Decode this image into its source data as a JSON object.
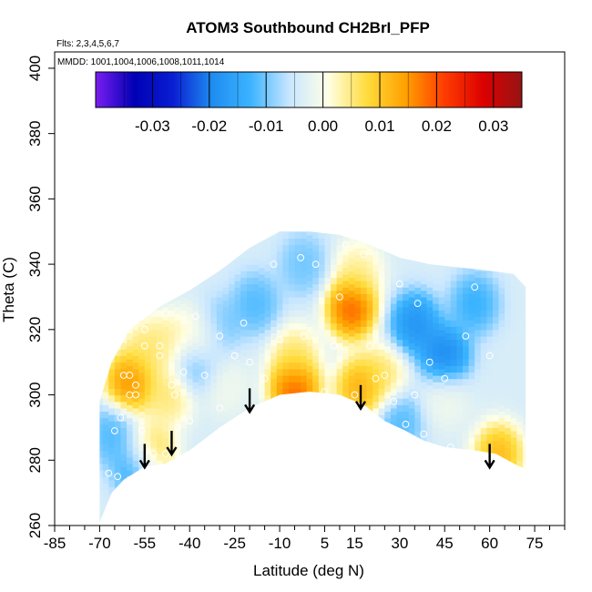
{
  "chart_data": {
    "type": "heatmap",
    "title": "ATOM3 Southbound CH2BrI_PFP",
    "subtitle_lines": [
      "Flts: 2,3,4,5,6,7",
      "MMDD: 1001,1004,1006,1008,1011,1014"
    ],
    "xlabel": "Latitude (deg N)",
    "ylabel": "Theta (C)",
    "xlim": [
      -85,
      85
    ],
    "ylim": [
      260,
      405
    ],
    "xticks": [
      -85,
      -70,
      -55,
      -40,
      -25,
      -10,
      5,
      15,
      30,
      45,
      60,
      75
    ],
    "xtick_labels": [
      "-85",
      "-70",
      "-55",
      "-40",
      "-25",
      "-10",
      "5",
      "15",
      "30",
      "45",
      "60",
      "75"
    ],
    "yticks": [
      260,
      280,
      300,
      320,
      340,
      360,
      380,
      400
    ],
    "ytick_labels": [
      "260",
      "280",
      "300",
      "320",
      "340",
      "360",
      "380",
      "400"
    ],
    "colorbar": {
      "min": -0.04,
      "max": 0.035,
      "ticks": [
        -0.03,
        -0.02,
        -0.01,
        0.0,
        0.01,
        0.02,
        0.03
      ],
      "tick_labels": [
        "-0.03",
        "-0.02",
        "-0.01",
        "0.00",
        "0.01",
        "0.02",
        "0.03"
      ],
      "colors": [
        "#7a1ef0",
        "#0000b4",
        "#0a1ed2",
        "#1e8cf0",
        "#3cb4ff",
        "#c8e6ff",
        "#ffffe6",
        "#ffdc3c",
        "#ffa000",
        "#ff3c00",
        "#dc0000",
        "#961414"
      ]
    },
    "top_boundary": [
      [
        -70,
        298
      ],
      [
        -66,
        310
      ],
      [
        -60,
        320
      ],
      [
        -50,
        327
      ],
      [
        -40,
        332
      ],
      [
        -30,
        338
      ],
      [
        -20,
        345
      ],
      [
        -10,
        350
      ],
      [
        0,
        350
      ],
      [
        10,
        349
      ],
      [
        20,
        346
      ],
      [
        30,
        342
      ],
      [
        40,
        340
      ],
      [
        50,
        339
      ],
      [
        60,
        338
      ],
      [
        68,
        337
      ],
      [
        72,
        333
      ]
    ],
    "bottom_boundary": [
      [
        -70,
        261
      ],
      [
        -66,
        270
      ],
      [
        -62,
        274
      ],
      [
        -55,
        278
      ],
      [
        -48,
        279
      ],
      [
        -40,
        283
      ],
      [
        -30,
        290
      ],
      [
        -20,
        296
      ],
      [
        -10,
        300
      ],
      [
        0,
        301
      ],
      [
        10,
        300
      ],
      [
        18,
        297
      ],
      [
        25,
        292
      ],
      [
        32,
        289
      ],
      [
        38,
        286
      ],
      [
        45,
        284
      ],
      [
        55,
        283
      ],
      [
        62,
        282
      ],
      [
        72,
        277
      ]
    ],
    "anomalies": [
      {
        "lat": -60,
        "theta": 304,
        "value": 0.025
      },
      {
        "lat": -54,
        "theta": 314,
        "value": 0.012
      },
      {
        "lat": -47,
        "theta": 316,
        "value": 0.01
      },
      {
        "lat": -36,
        "theta": 318,
        "value": 0.014
      },
      {
        "lat": -47,
        "theta": 300,
        "value": 0.012
      },
      {
        "lat": -53,
        "theta": 282,
        "value": 0.018
      },
      {
        "lat": -5,
        "theta": 302,
        "value": 0.03
      },
      {
        "lat": -5,
        "theta": 312,
        "value": 0.012
      },
      {
        "lat": 14,
        "theta": 327,
        "value": 0.03
      },
      {
        "lat": 17,
        "theta": 302,
        "value": 0.022
      },
      {
        "lat": 24,
        "theta": 306,
        "value": 0.012
      },
      {
        "lat": 16,
        "theta": 338,
        "value": 0.01
      },
      {
        "lat": 63,
        "theta": 282,
        "value": 0.02
      },
      {
        "lat": 45,
        "theta": 299,
        "value": 0.004
      },
      {
        "lat": 45,
        "theta": 312,
        "value": -0.02
      },
      {
        "lat": 35,
        "theta": 322,
        "value": -0.018
      },
      {
        "lat": 55,
        "theta": 328,
        "value": -0.012
      },
      {
        "lat": -18,
        "theta": 328,
        "value": -0.01
      },
      {
        "lat": -2,
        "theta": 340,
        "value": -0.008
      },
      {
        "lat": -32,
        "theta": 320,
        "value": -0.012
      },
      {
        "lat": -38,
        "theta": 310,
        "value": -0.01
      },
      {
        "lat": -57,
        "theta": 278,
        "value": -0.016
      },
      {
        "lat": -66,
        "theta": 288,
        "value": -0.01
      },
      {
        "lat": -28,
        "theta": 303,
        "value": 0.004
      },
      {
        "lat": 30,
        "theta": 292,
        "value": -0.01
      }
    ],
    "samples": [
      [
        -67,
        276
      ],
      [
        -64,
        275
      ],
      [
        -60,
        274
      ],
      [
        -65,
        289
      ],
      [
        -63,
        293
      ],
      [
        -58,
        303
      ],
      [
        -60,
        300
      ],
      [
        -55,
        315
      ],
      [
        -50,
        315
      ],
      [
        -48,
        325
      ],
      [
        -42,
        323
      ],
      [
        -45,
        300
      ],
      [
        -52,
        282
      ],
      [
        -48,
        282
      ],
      [
        -40,
        292
      ],
      [
        -30,
        296
      ],
      [
        -20,
        310
      ],
      [
        -10,
        317
      ],
      [
        -2,
        318
      ],
      [
        5,
        301
      ],
      [
        8,
        315
      ],
      [
        10,
        330
      ],
      [
        2,
        340
      ],
      [
        -3,
        342
      ],
      [
        -12,
        340
      ],
      [
        -22,
        322
      ],
      [
        -30,
        318
      ],
      [
        -35,
        306
      ],
      [
        -42,
        307
      ],
      [
        -46,
        303
      ],
      [
        -55,
        320
      ],
      [
        -60,
        306
      ],
      [
        -62,
        306
      ],
      [
        12,
        346
      ],
      [
        18,
        343
      ],
      [
        20,
        315
      ],
      [
        25,
        306
      ],
      [
        28,
        298
      ],
      [
        32,
        291
      ],
      [
        35,
        300
      ],
      [
        40,
        310
      ],
      [
        45,
        305
      ],
      [
        52,
        318
      ],
      [
        55,
        333
      ],
      [
        60,
        312
      ],
      [
        68,
        338
      ],
      [
        47,
        284
      ],
      [
        38,
        288
      ],
      [
        22,
        305
      ],
      [
        15,
        300
      ],
      [
        -15,
        305
      ],
      [
        -25,
        312
      ],
      [
        -38,
        324
      ],
      [
        -50,
        312
      ],
      [
        -56,
        289
      ],
      [
        -58,
        300
      ],
      [
        -44,
        290
      ],
      [
        70,
        277
      ],
      [
        36,
        328
      ],
      [
        30,
        334
      ]
    ],
    "arrows": [
      [
        -55,
        285
      ],
      [
        -46,
        289
      ],
      [
        -20,
        302
      ],
      [
        17,
        303
      ],
      [
        60,
        285
      ]
    ]
  }
}
